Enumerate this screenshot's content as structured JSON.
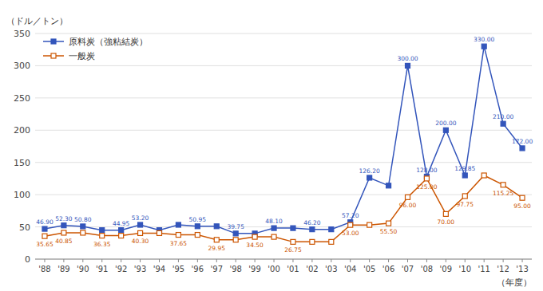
{
  "chart_data": {
    "type": "line",
    "categories": [
      "'88",
      "'89",
      "'90",
      "'91",
      "'92",
      "'93",
      "'94",
      "'95",
      "'96",
      "'97",
      "'98",
      "'99",
      "'00",
      "'01",
      "'02",
      "'03",
      "'04",
      "'05",
      "'06",
      "'07",
      "'08",
      "'09",
      "'10",
      "'11",
      "'12",
      "'13"
    ],
    "series": [
      {
        "name": "原料炭（強粘結炭）",
        "color": "#3355bb",
        "marker": "square",
        "values": [
          46.9,
          52.3,
          50.8,
          44.95,
          44.95,
          53.2,
          44.95,
          53.2,
          50.95,
          50.95,
          39.75,
          39.75,
          48.1,
          48.1,
          46.2,
          46.2,
          57.2,
          126.2,
          114.0,
          300.0,
          128.0,
          200.0,
          129.85,
          330.0,
          210.0,
          172.0
        ],
        "value_labels": [
          "46.90",
          "52.30",
          "50.80",
          null,
          "44.95",
          "53.20",
          null,
          null,
          "50.95",
          null,
          "39.75",
          null,
          "48.10",
          null,
          "46.20",
          null,
          "57.20",
          "126.20",
          null,
          "300.00",
          "128.00",
          "200.00",
          "129.85",
          "330.00",
          "210.00",
          "172.00"
        ]
      },
      {
        "name": "一般炭",
        "color": "#cc5500",
        "marker": "square",
        "values": [
          35.65,
          40.85,
          40.85,
          36.35,
          36.35,
          40.3,
          40.3,
          37.65,
          37.65,
          29.95,
          29.95,
          34.5,
          34.5,
          26.75,
          26.75,
          26.75,
          53.0,
          53.0,
          55.5,
          96.0,
          125.0,
          70.0,
          97.75,
          129.85,
          115.25,
          95.0
        ],
        "value_labels": [
          "35.65",
          "40.85",
          null,
          "36.35",
          null,
          "40.30",
          null,
          "37.65",
          null,
          "29.95",
          null,
          "34.50",
          null,
          "26.75",
          null,
          null,
          "53.00",
          null,
          "55.50",
          "96.00",
          "125.00",
          "70.00",
          "97.75",
          null,
          "115.25",
          "95.00"
        ]
      }
    ],
    "y_label": "（ドル／トン）",
    "x_label": "（年度）",
    "ylim": [
      0,
      350
    ],
    "yticks": [
      0,
      50,
      100,
      150,
      200,
      250,
      300,
      350
    ],
    "grid": true,
    "legend": "upper left",
    "data_labels": true
  }
}
